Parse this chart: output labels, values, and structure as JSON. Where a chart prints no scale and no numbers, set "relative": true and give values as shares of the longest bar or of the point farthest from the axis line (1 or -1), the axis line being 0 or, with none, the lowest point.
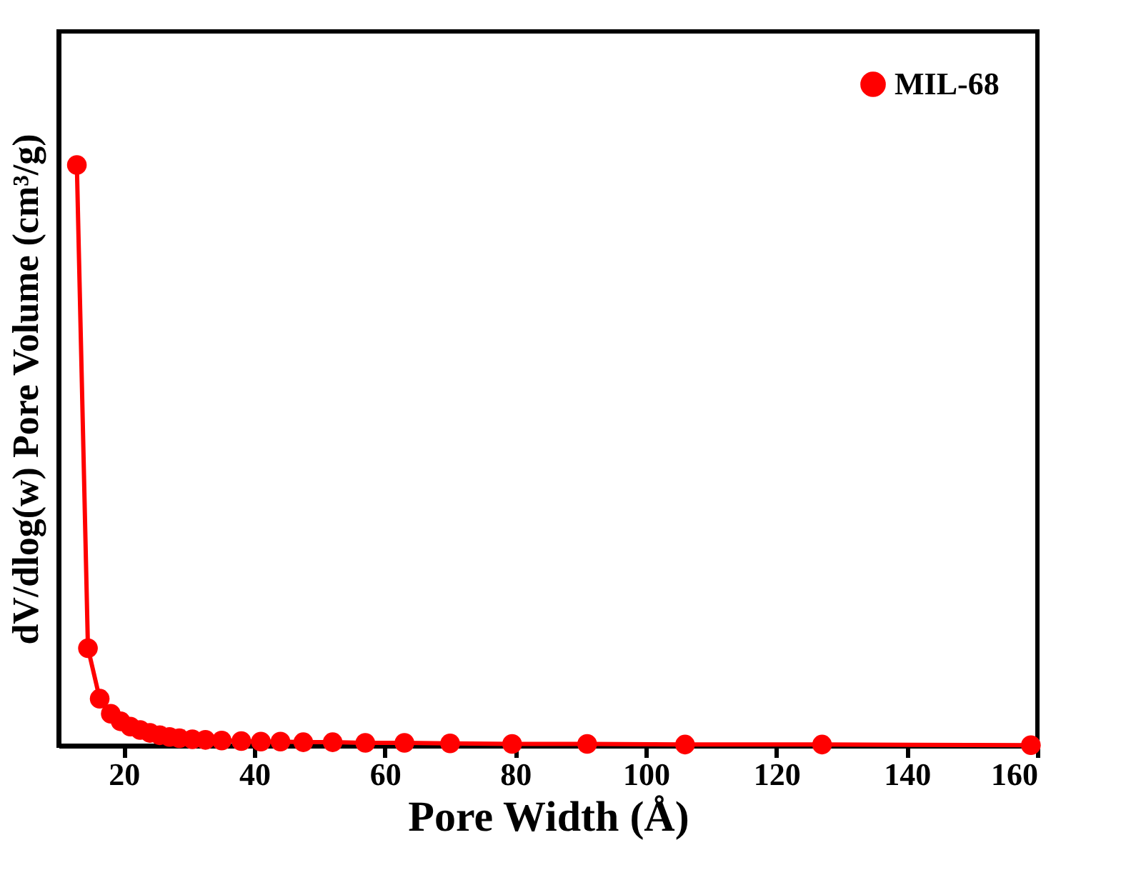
{
  "chart_data": {
    "type": "line",
    "xlabel": "Pore Width (Å)",
    "ylabel": "dV/dlog(w) Pore Volume (cm³/g)",
    "relative": true,
    "tick_labels": "x",
    "xlim": [
      10,
      160
    ],
    "xticks": [
      20,
      40,
      60,
      80,
      100,
      120,
      140,
      160
    ],
    "grid": false,
    "legend": "top right",
    "marker": "circle",
    "line_style": "solid",
    "x": [
      12.8,
      14.5,
      16.3,
      18.0,
      19.5,
      21,
      22.5,
      24,
      25.5,
      27,
      28.5,
      30.5,
      32.5,
      35,
      38,
      41,
      44,
      47.5,
      52,
      57,
      63,
      70,
      79.5,
      91,
      106,
      127,
      159
    ],
    "series": [
      {
        "name": "MIL-68",
        "color": "#ff0000",
        "values": [
          1,
          0.168,
          0.081,
          0.055,
          0.042,
          0.033,
          0.027,
          0.022,
          0.018,
          0.015,
          0.013,
          0.011,
          0.01,
          0.009,
          0.008,
          0.007,
          0.007,
          0.006,
          0.006,
          0.005,
          0.005,
          0.004,
          0.003,
          0.003,
          0.002,
          0.002,
          0.001
        ]
      }
    ]
  }
}
